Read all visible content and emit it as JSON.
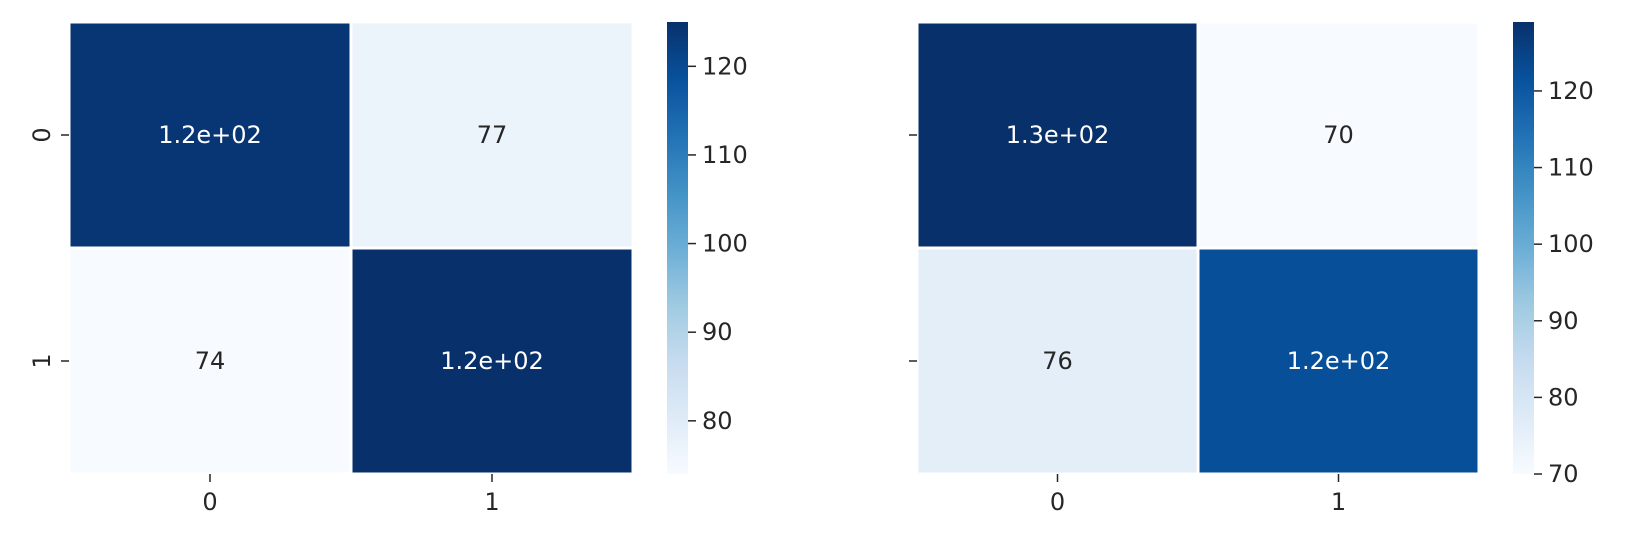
{
  "chart_data": [
    {
      "type": "heatmap",
      "x_categories": [
        "0",
        "1"
      ],
      "y_categories": [
        "0",
        "1"
      ],
      "y_tick_labels_visible": true,
      "values": [
        [
          124,
          77
        ],
        [
          74,
          125
        ]
      ],
      "annotations": [
        [
          "1.2e+02",
          "77"
        ],
        [
          "74",
          "1.2e+02"
        ]
      ],
      "colormap": "Blues",
      "vmin": 74,
      "vmax": 125,
      "colorbar_ticks": [
        80,
        90,
        100,
        110,
        120
      ]
    },
    {
      "type": "heatmap",
      "x_categories": [
        "0",
        "1"
      ],
      "y_categories": [
        "0",
        "1"
      ],
      "y_tick_labels_visible": false,
      "values": [
        [
          129,
          70
        ],
        [
          76,
          122
        ]
      ],
      "annotations": [
        [
          "1.3e+02",
          "70"
        ],
        [
          "76",
          "1.2e+02"
        ]
      ],
      "colormap": "Blues",
      "vmin": 70,
      "vmax": 129,
      "colorbar_ticks": [
        70,
        80,
        90,
        100,
        110,
        120
      ]
    }
  ]
}
